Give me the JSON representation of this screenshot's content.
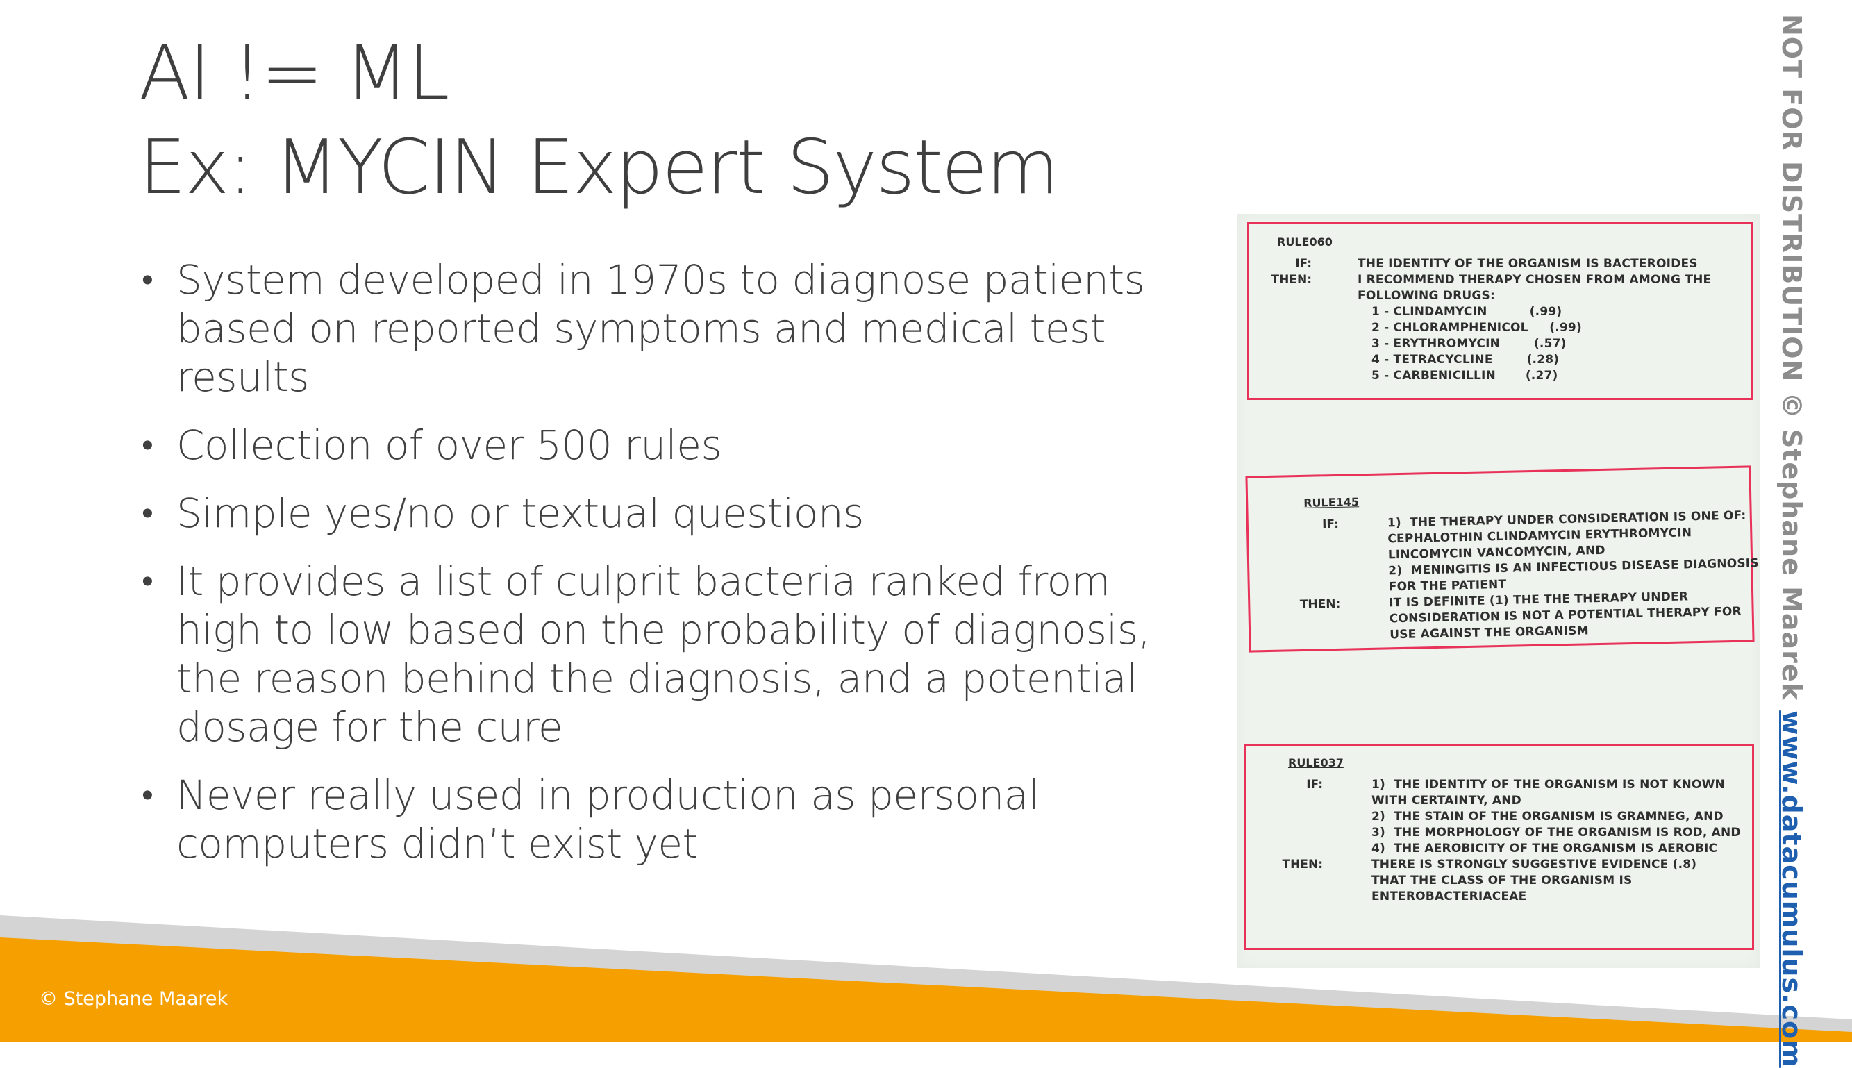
{
  "slide": {
    "title_line1": "AI != ML",
    "title_line2": "Ex: MYCIN Expert System",
    "bullets": [
      "System developed in 1970s to diagnose patients based on reported symptoms and medical test results",
      "Collection of over 500 rules",
      "Simple yes/no or textual questions",
      "It provides a list of culprit bacteria ranked from high to low based on the probability of diagnosis, the reason behind the diagnosis, and a potential dosage for the cure",
      "Never really used in production as personal computers didn’t exist yet"
    ],
    "bullet_glyph": "•"
  },
  "rules": {
    "r1": {
      "name": "RULE060",
      "if_label": "IF:",
      "then_label": "THEN:",
      "if_text": "THE IDENTITY OF THE ORGANISM IS BACTEROIDES",
      "then_text": "I RECOMMEND THERAPY CHOSEN FROM AMONG THE\nFOLLOWING DRUGS:",
      "drugs": "1 - CLINDAMYCIN          (.99)\n2 - CHLORAMPHENICOL     (.99)\n3 - ERYTHROMYCIN        (.57)\n4 - TETRACYCLINE        (.28)\n5 - CARBENICILLIN       (.27)"
    },
    "r2": {
      "name": "RULE145",
      "if_label": "IF:",
      "then_label": "THEN:",
      "if_text": "1)  THE THERAPY UNDER CONSIDERATION IS ONE OF:\nCEPHALOTHIN CLINDAMYCIN ERYTHROMYCIN\nLINCOMYCIN VANCOMYCIN, AND\n2)  MENINGITIS IS AN INFECTIOUS DISEASE DIAGNOSIS\nFOR THE PATIENT",
      "then_text": "IT IS DEFINITE (1) THE THE THERAPY UNDER\nCONSIDERATION IS NOT A POTENTIAL THERAPY FOR\nUSE AGAINST THE ORGANISM"
    },
    "r3": {
      "name": "RULE037",
      "if_label": "IF:",
      "then_label": "THEN:",
      "if_text": "1)  THE IDENTITY OF THE ORGANISM IS NOT KNOWN\nWITH CERTAINTY, AND\n2)  THE STAIN OF THE ORGANISM IS GRAMNEG, AND\n3)  THE MORPHOLOGY OF THE ORGANISM IS ROD, AND\n4)  THE AEROBICITY OF THE ORGANISM IS AEROBIC",
      "then_text": "THERE IS STRONGLY SUGGESTIVE EVIDENCE (.8)\nTHAT THE CLASS OF THE ORGANISM IS\nENTEROBACTERIACEAE"
    }
  },
  "watermark": {
    "text": "NOT FOR DISTRIBUTION © Stephane Maarek ",
    "link": "www.datacumulus.com"
  },
  "footer": {
    "copyright": "© Stephane Maarek"
  },
  "colors": {
    "footer_orange": "#f5a000",
    "footer_gray": "#d4d4d4",
    "rule_border": "#e8325a",
    "link_blue": "#1f5fb0"
  }
}
